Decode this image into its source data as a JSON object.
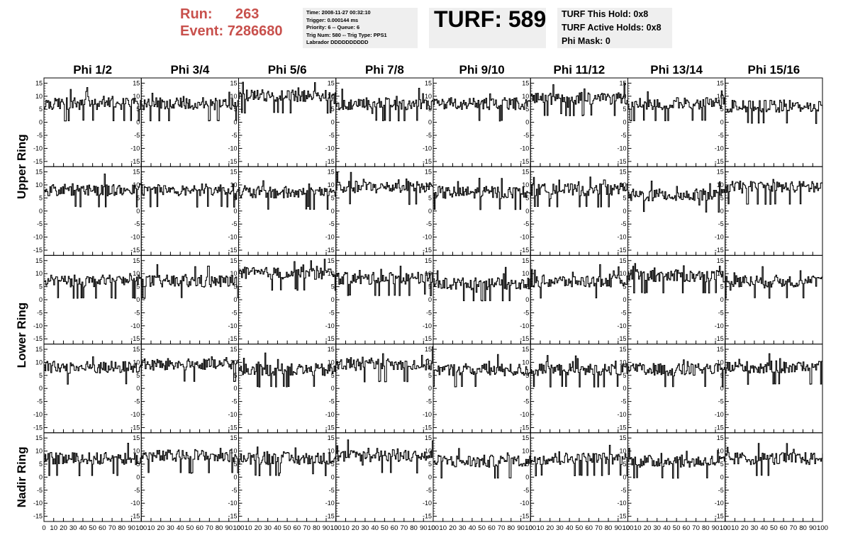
{
  "header": {
    "run_label": "Run:",
    "run_value": "263",
    "event_label": "Event:",
    "event_value": "7286680",
    "info_lines": [
      "Time: 2008-11-27 00:32:10",
      "Trigger: 0.000144 ms",
      "Priority: 6 -- Queue: 6",
      "Trig Num: 580 -- Trig Type: PPS1",
      "Labrador DDDDDDDDDD"
    ],
    "turf": "TURF: 589",
    "hold_lines": [
      "TURF This Hold: 0x8",
      "TURF Active Holds: 0x8",
      "Phi Mask: 0"
    ]
  },
  "colors": {
    "title_red": "#c8504c",
    "box_gray": "#efefef",
    "trace": "#000000"
  },
  "chart_data": {
    "type": "line",
    "columns": [
      "Phi 1/2",
      "Phi 3/4",
      "Phi 5/6",
      "Phi 7/8",
      "Phi 9/10",
      "Phi 11/12",
      "Phi 13/14",
      "Phi 15/16"
    ],
    "rows": [
      "Upper Ring",
      "Lower Ring",
      "Nadir Ring"
    ],
    "xlim": [
      0,
      100
    ],
    "ylim": [
      -17,
      17
    ],
    "xticks": [
      0,
      10,
      20,
      30,
      40,
      50,
      60,
      70,
      80,
      90,
      100
    ],
    "yticks": [
      -15,
      -10,
      -5,
      0,
      5,
      10,
      15
    ],
    "xtick_labels": [
      "0",
      "10",
      "20",
      "30",
      "40",
      "50",
      "60",
      "70",
      "80",
      "90",
      "100"
    ],
    "ytick_labels": [
      "-15",
      "-10",
      "-5",
      "0",
      "5",
      "10",
      "15"
    ],
    "panel_rows": 5,
    "trace_samples": 100,
    "trace_levels": [
      [
        7,
        7,
        10,
        7,
        7,
        9,
        7,
        6
      ],
      [
        8,
        8,
        7,
        9,
        7,
        8,
        6,
        9
      ],
      [
        7,
        7,
        10,
        8,
        6,
        7,
        9,
        7
      ],
      [
        8,
        9,
        7,
        9,
        7,
        7,
        7,
        8
      ],
      [
        7,
        8,
        7,
        8,
        6,
        7,
        6,
        7
      ]
    ]
  }
}
